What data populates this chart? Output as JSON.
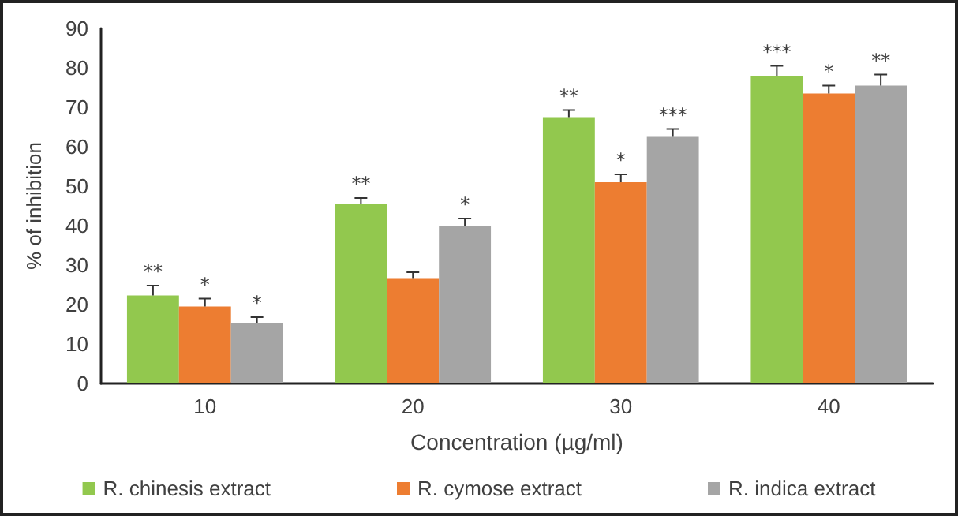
{
  "chart_data": {
    "type": "bar",
    "xlabel": "Concentration (µg/ml)",
    "ylabel": "% of inhibition",
    "categories": [
      "10",
      "20",
      "30",
      "40"
    ],
    "series": [
      {
        "name": "R. chinesis extract",
        "color": "#92c84e",
        "values": [
          22.3,
          45.5,
          67.5,
          78
        ],
        "errors": [
          2.5,
          1.5,
          1.8,
          2.5
        ],
        "value_labels": [
          "**",
          "**",
          "**",
          "***"
        ]
      },
      {
        "name": "R. cymose extract",
        "color": "#ed7d31",
        "values": [
          19.5,
          26.7,
          51,
          73.5
        ],
        "errors": [
          2,
          1.5,
          2,
          2
        ],
        "value_labels": [
          "*",
          null,
          "*",
          "*"
        ]
      },
      {
        "name": "R. indica extract",
        "color": "#a5a5a5",
        "values": [
          15.3,
          40,
          62.5,
          75.5
        ],
        "errors": [
          1.5,
          1.8,
          2,
          2.8
        ],
        "value_labels": [
          "*",
          "*",
          "***",
          "**"
        ]
      }
    ],
    "ylim": [
      0,
      90
    ],
    "yticks": [
      0,
      10,
      20,
      30,
      40,
      50,
      60,
      70,
      80,
      90
    ],
    "grid": false,
    "legend": "bottom"
  }
}
